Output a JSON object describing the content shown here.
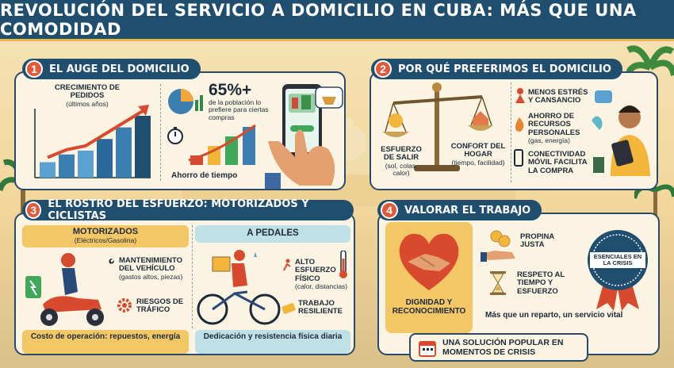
{
  "title": "REVOLUCIÓN DEL SERVICIO A DOMICILIO EN CUBA: MÁS QUE UNA COMODIDAD",
  "colors": {
    "navy": "#1f4e6e",
    "accent": "#e0593a",
    "gold": "#f3c766",
    "teal": "#bfe0e6"
  },
  "section1": {
    "num": "1",
    "title": "EL AUGE DEL DOMICILIO",
    "growth_label": "CRECIMIENTO DE PEDIDOS",
    "growth_sub": "(últimos años)",
    "stat_value": "65%+",
    "stat_desc": "de la población lo prefiere para ciertas compras",
    "time_label": "Ahorro de tiempo"
  },
  "section2": {
    "num": "2",
    "title": "POR QUÉ PREFERIMOS EL DOMICILIO",
    "effort_label": "ESFUERZO DE SALIR",
    "effort_sub": "(sol, colas, calor)",
    "comfort_label": "CONFORT DEL HOGAR",
    "comfort_sub": "(tiempo, facilidad)",
    "benefit1": "MENOS ESTRÉS Y CANSANCIO",
    "benefit2": "AHORRO DE RECURSOS PERSONALES",
    "benefit2_sub": "(gas, energía)",
    "benefit3": "CONECTIVIDAD MÓVIL FACILITA LA COMPRA"
  },
  "section3": {
    "num": "3",
    "title": "EL ROSTRO DEL ESFUERZO: MOTORIZADOS Y CICLISTAS",
    "moto_title": "MOTORIZADOS",
    "moto_sub": "(Eléctricos/Gasolina)",
    "moto_item1": "MANTENIMIENTO DEL VEHÍCULO",
    "moto_item1_sub": "(gastos altos, piezas)",
    "moto_item2": "RIESGOS DE TRÁFICO",
    "moto_footer": "Costo de operación: repuestos, energía",
    "ped_title": "A PEDALES",
    "ped_item1": "ALTO ESFUERZO FÍSICO",
    "ped_item1_sub": "(calor, distancias)",
    "ped_item2": "TRABAJO RESILIENTE",
    "ped_footer": "Dedicación y resistencia física diaria"
  },
  "section4": {
    "num": "4",
    "title": "VALORAR EL TRABAJO",
    "dignity": "DIGNIDAD Y RECONOCIMIENTO",
    "tip": "PROPINA JUSTA",
    "respect": "RESPETO AL TIEMPO Y ESFUERZO",
    "badge": "ESENCIALES EN LA CRISIS",
    "tagline": "Más que un reparto, un servicio vital"
  },
  "footer_note": "UNA SOLUCIÓN POPULAR EN MOMENTOS DE CRISIS",
  "growth_chart": {
    "values": [
      2,
      3,
      3.5,
      5,
      6.5,
      8
    ]
  },
  "time_chart": {
    "values": [
      1,
      2,
      3,
      4
    ]
  }
}
